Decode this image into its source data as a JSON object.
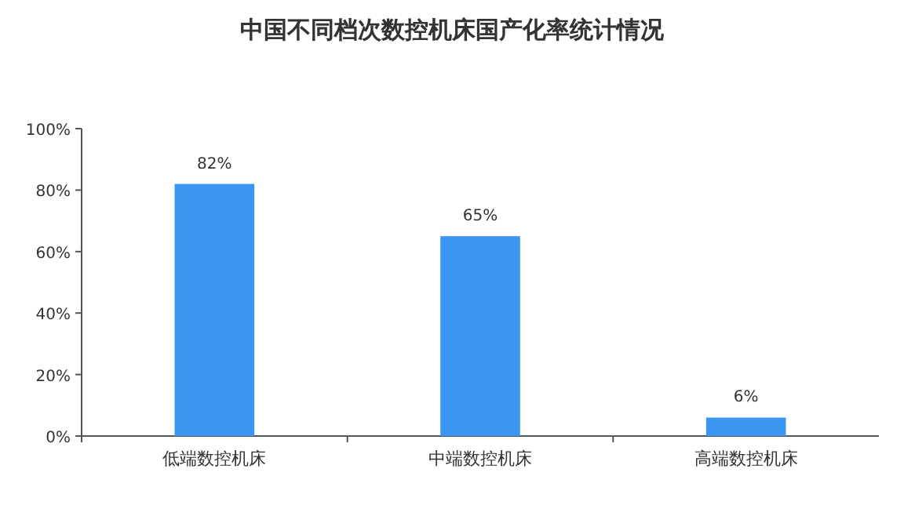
{
  "chart_data": {
    "type": "bar",
    "title": "中国不同档次数控机床国产化率统计情况",
    "categories": [
      "低端数控机床",
      "中端数控机床",
      "高端数控机床"
    ],
    "values": [
      82,
      65,
      6
    ],
    "value_labels": [
      "82%",
      "65%",
      "6%"
    ],
    "color": "#3a96f0",
    "ylim": [
      0,
      100
    ],
    "yticks": [
      {
        "value": 0,
        "label": "0%"
      },
      {
        "value": 20,
        "label": "20%"
      },
      {
        "value": 40,
        "label": "40%"
      },
      {
        "value": 60,
        "label": "60%"
      },
      {
        "value": 80,
        "label": "80%"
      },
      {
        "value": 100,
        "label": "100%"
      }
    ],
    "grid": false
  }
}
